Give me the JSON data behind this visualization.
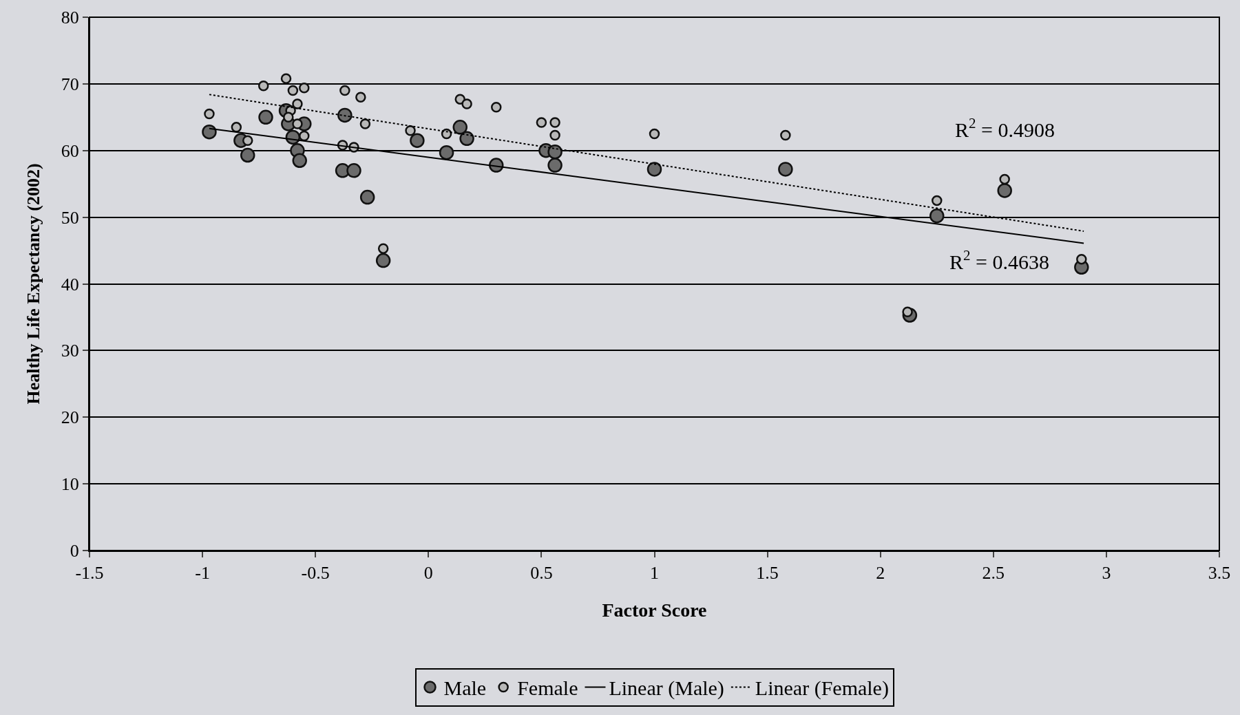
{
  "chart_data": {
    "type": "scatter",
    "xlabel": "Factor Score",
    "ylabel": "Healthy Life Expectancy (2002)",
    "xlim": [
      -1.5,
      3.5
    ],
    "xticks": [
      -1.5,
      -1,
      -0.5,
      0,
      0.5,
      1,
      1.5,
      2,
      2.5,
      3,
      3.5
    ],
    "ylim": [
      0,
      80
    ],
    "yticks": [
      0,
      10,
      20,
      30,
      40,
      50,
      60,
      70,
      80
    ],
    "grid": "y",
    "legend": "bottom",
    "marker": "circle",
    "series": [
      {
        "name": "Male",
        "color": "#6b6b6b",
        "x": [
          -0.97,
          -0.83,
          -0.8,
          -0.72,
          -0.63,
          -0.62,
          -0.6,
          -0.58,
          -0.57,
          -0.55,
          -0.37,
          -0.38,
          -0.33,
          -0.27,
          -0.2,
          -0.05,
          0.08,
          0.14,
          0.17,
          0.3,
          0.52,
          0.56,
          0.56,
          1.0,
          1.58,
          2.25,
          2.13,
          2.55,
          2.89
        ],
        "values": [
          62.8,
          61.5,
          59.3,
          65,
          66,
          64,
          62,
          60,
          58.5,
          64,
          65.3,
          57,
          57,
          53,
          43.5,
          61.5,
          59.7,
          63.5,
          61.8,
          57.8,
          60,
          59.8,
          57.8,
          57.2,
          57.2,
          50.2,
          35.3,
          54,
          42.5
        ]
      },
      {
        "name": "Female",
        "color": "#b8b8b8",
        "x": [
          -0.97,
          -0.85,
          -0.8,
          -0.73,
          -0.63,
          -0.6,
          -0.55,
          -0.58,
          -0.61,
          -0.58,
          -0.55,
          -0.62,
          -0.37,
          -0.3,
          -0.28,
          -0.38,
          -0.33,
          -0.2,
          -0.08,
          0.08,
          0.14,
          0.17,
          0.3,
          0.5,
          0.56,
          0.56,
          1.0,
          1.58,
          2.25,
          2.12,
          2.55,
          2.89
        ],
        "values": [
          65.5,
          63.5,
          61.5,
          69.7,
          70.8,
          69,
          69.4,
          67,
          66,
          64,
          62.2,
          65,
          69,
          68,
          64,
          60.8,
          60.5,
          45.3,
          63,
          62.5,
          67.7,
          67,
          66.5,
          64.2,
          64.2,
          62.3,
          62.5,
          62.3,
          52.5,
          35.8,
          55.7,
          43.7
        ]
      },
      {
        "name": "Linear (Male)",
        "type": "line",
        "color": "#000000",
        "line_style": "solid",
        "marker": "none",
        "x": [
          -0.97,
          2.9
        ],
        "values": [
          63.3,
          46.1
        ]
      },
      {
        "name": "Linear (Female)",
        "type": "line",
        "color": "#000000",
        "line_style": "dotted",
        "marker": "none",
        "x": [
          -0.97,
          2.9
        ],
        "values": [
          68.4,
          47.9
        ]
      }
    ],
    "annotations": [
      "R$^{2}$ = 0.4908",
      "R$^{2}$ = 0.4638"
    ]
  }
}
